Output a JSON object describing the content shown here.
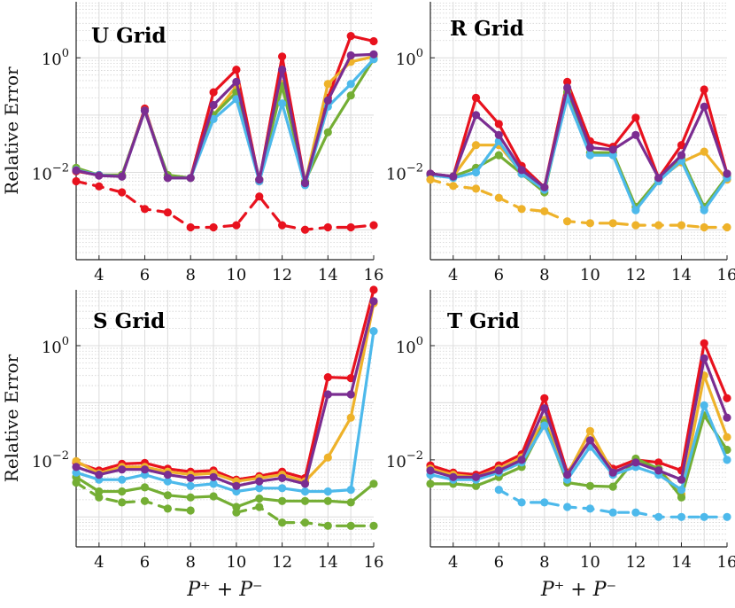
{
  "chart_data": [
    {
      "type": "line",
      "title": "U Grid",
      "xlabel": "",
      "ylabel": "Relative Error",
      "x": [
        3,
        4,
        5,
        6,
        7,
        8,
        9,
        10,
        11,
        12,
        13,
        14,
        15,
        16
      ],
      "xticks": [
        "4",
        "6",
        "8",
        "10",
        "12",
        "14",
        "16"
      ],
      "yticks": [
        {
          "value": 0.01,
          "base": "10",
          "exp": "−2"
        },
        {
          "value": 1,
          "base": "10",
          "exp": "0"
        }
      ],
      "xlim": [
        3,
        16
      ],
      "ylim": [
        0.0003,
        9.5
      ],
      "yscale": "log",
      "series": [
        {
          "name": "red",
          "color": "#e8121e",
          "dashed": false,
          "values": [
            0.0105,
            0.009,
            0.0085,
            0.13,
            0.008,
            0.008,
            0.25,
            0.62,
            0.007,
            1.05,
            0.0065,
            0.2,
            2.4,
            1.95
          ]
        },
        {
          "name": "orange",
          "color": "#eeb22a",
          "dashed": false,
          "values": [
            0.011,
            0.009,
            0.009,
            0.12,
            0.008,
            0.008,
            0.1,
            0.32,
            0.0075,
            0.35,
            0.0065,
            0.35,
            0.85,
            1.05
          ]
        },
        {
          "name": "green",
          "color": "#74ae34",
          "dashed": false,
          "values": [
            0.012,
            0.009,
            0.009,
            0.12,
            0.009,
            0.008,
            0.1,
            0.25,
            0.0075,
            0.32,
            0.007,
            0.05,
            0.22,
            0.95
          ]
        },
        {
          "name": "cyan",
          "color": "#4db9eb",
          "dashed": false,
          "values": [
            0.011,
            0.009,
            0.0085,
            0.12,
            0.008,
            0.008,
            0.085,
            0.19,
            0.007,
            0.16,
            0.006,
            0.14,
            0.35,
            0.95
          ]
        },
        {
          "name": "purple",
          "color": "#7b2d91",
          "dashed": false,
          "values": [
            0.0108,
            0.0088,
            0.0085,
            0.12,
            0.008,
            0.008,
            0.15,
            0.38,
            0.0075,
            0.62,
            0.0065,
            0.18,
            1.1,
            1.15
          ]
        },
        {
          "name": "red-dashed",
          "color": "#e8121e",
          "dashed": true,
          "values": [
            0.007,
            0.0057,
            0.0045,
            0.0023,
            0.002,
            0.0011,
            0.0011,
            0.0012,
            0.0038,
            0.0012,
            0.001,
            0.0011,
            0.0011,
            0.0012
          ]
        }
      ]
    },
    {
      "type": "line",
      "title": "R Grid",
      "xlabel": "",
      "ylabel": "",
      "x": [
        3,
        4,
        5,
        6,
        7,
        8,
        9,
        10,
        11,
        12,
        13,
        14,
        15,
        16
      ],
      "xticks": [
        "4",
        "6",
        "8",
        "10",
        "12",
        "14",
        "16"
      ],
      "yticks": [
        {
          "value": 0.01,
          "base": "10",
          "exp": "−2"
        },
        {
          "value": 1,
          "base": "10",
          "exp": "0"
        }
      ],
      "xlim": [
        3,
        16
      ],
      "ylim": [
        0.0003,
        9.5
      ],
      "yscale": "log",
      "series": [
        {
          "name": "red",
          "color": "#e8121e",
          "dashed": false,
          "values": [
            0.0095,
            0.0085,
            0.2,
            0.07,
            0.013,
            0.0055,
            0.38,
            0.035,
            0.028,
            0.09,
            0.008,
            0.03,
            0.28,
            0.0095
          ]
        },
        {
          "name": "orange",
          "color": "#eeb22a",
          "dashed": false,
          "values": [
            0.009,
            0.0085,
            0.03,
            0.03,
            0.01,
            0.0055,
            0.25,
            0.022,
            0.022,
            0.0025,
            0.0075,
            0.015,
            0.023,
            0.0075
          ]
        },
        {
          "name": "green",
          "color": "#74ae34",
          "dashed": false,
          "values": [
            0.009,
            0.0085,
            0.012,
            0.02,
            0.0095,
            0.0045,
            0.25,
            0.022,
            0.022,
            0.0025,
            0.0075,
            0.018,
            0.0025,
            0.0085
          ]
        },
        {
          "name": "cyan",
          "color": "#4db9eb",
          "dashed": false,
          "values": [
            0.009,
            0.008,
            0.01,
            0.035,
            0.0095,
            0.005,
            0.2,
            0.02,
            0.02,
            0.0022,
            0.007,
            0.016,
            0.0022,
            0.008
          ]
        },
        {
          "name": "purple",
          "color": "#7b2d91",
          "dashed": false,
          "values": [
            0.0095,
            0.0085,
            0.1,
            0.045,
            0.011,
            0.0055,
            0.3,
            0.027,
            0.025,
            0.045,
            0.008,
            0.02,
            0.14,
            0.0095
          ]
        },
        {
          "name": "orange-dashed",
          "color": "#eeb22a",
          "dashed": true,
          "values": [
            0.0075,
            0.0058,
            0.0052,
            0.0036,
            0.0023,
            0.0021,
            0.0014,
            0.0013,
            0.0013,
            0.0012,
            0.0012,
            0.0012,
            0.0011,
            0.0011
          ]
        }
      ]
    },
    {
      "type": "line",
      "title": "S Grid",
      "xlabel": "P⁺ + P⁻",
      "ylabel": "Relative Error",
      "x": [
        3,
        4,
        5,
        6,
        7,
        8,
        9,
        10,
        11,
        12,
        13,
        14,
        15,
        16
      ],
      "xticks": [
        "4",
        "6",
        "8",
        "10",
        "12",
        "14",
        "16"
      ],
      "yticks": [
        {
          "value": 0.01,
          "base": "10",
          "exp": "−2"
        },
        {
          "value": 1,
          "base": "10",
          "exp": "0"
        }
      ],
      "xlim": [
        3,
        16
      ],
      "ylim": [
        0.0003,
        9.5
      ],
      "yscale": "log",
      "series": [
        {
          "name": "red",
          "color": "#e8121e",
          "dashed": false,
          "values": [
            0.009,
            0.0065,
            0.0085,
            0.0088,
            0.007,
            0.0062,
            0.0065,
            0.0045,
            0.0052,
            0.0062,
            0.0048,
            0.28,
            0.27,
            9.5
          ]
        },
        {
          "name": "orange",
          "color": "#eeb22a",
          "dashed": false,
          "values": [
            0.0095,
            0.0058,
            0.0075,
            0.0075,
            0.0062,
            0.0055,
            0.0058,
            0.0042,
            0.0048,
            0.0055,
            0.0042,
            0.011,
            0.055,
            5.5
          ]
        },
        {
          "name": "green",
          "color": "#74ae34",
          "dashed": false,
          "values": [
            0.005,
            0.0028,
            0.0028,
            0.0033,
            0.0024,
            0.0022,
            0.0023,
            0.0015,
            0.0021,
            0.0019,
            0.0019,
            0.0019,
            0.0018,
            0.0038
          ]
        },
        {
          "name": "cyan",
          "color": "#4db9eb",
          "dashed": false,
          "values": [
            0.006,
            0.0045,
            0.0045,
            0.0055,
            0.0042,
            0.0035,
            0.0038,
            0.0028,
            0.0032,
            0.0032,
            0.0028,
            0.0028,
            0.003,
            1.8
          ]
        },
        {
          "name": "purple",
          "color": "#7b2d91",
          "dashed": false,
          "values": [
            0.0075,
            0.0055,
            0.0068,
            0.0068,
            0.0055,
            0.0048,
            0.005,
            0.0035,
            0.0042,
            0.0048,
            0.0038,
            0.14,
            0.14,
            6.0
          ]
        },
        {
          "name": "green-dashed",
          "color": "#74ae34",
          "dashed": true,
          "values": [
            0.004,
            0.0022,
            0.0018,
            0.0019,
            0.0014,
            0.0013,
            null,
            0.0012,
            0.0015,
            0.0008,
            0.0008,
            0.0007,
            0.0007,
            0.0007
          ]
        }
      ]
    },
    {
      "type": "line",
      "title": "T Grid",
      "xlabel": "P⁺ + P⁻",
      "ylabel": "",
      "x": [
        3,
        4,
        5,
        6,
        7,
        8,
        9,
        10,
        11,
        12,
        13,
        14,
        15,
        16
      ],
      "xticks": [
        "4",
        "6",
        "8",
        "10",
        "12",
        "14",
        "16"
      ],
      "yticks": [
        {
          "value": 0.01,
          "base": "10",
          "exp": "−2"
        },
        {
          "value": 1,
          "base": "10",
          "exp": "0"
        }
      ],
      "xlim": [
        3,
        16
      ],
      "ylim": [
        0.0003,
        9.5
      ],
      "yscale": "log",
      "series": [
        {
          "name": "red",
          "color": "#e8121e",
          "dashed": false,
          "values": [
            0.008,
            0.006,
            0.0055,
            0.008,
            0.0125,
            0.12,
            0.006,
            0.022,
            0.007,
            0.01,
            0.009,
            0.0065,
            1.1,
            0.12
          ]
        },
        {
          "name": "orange",
          "color": "#eeb22a",
          "dashed": false,
          "values": [
            0.007,
            0.0055,
            0.005,
            0.007,
            0.011,
            0.05,
            0.0055,
            0.032,
            0.006,
            0.009,
            0.007,
            0.0025,
            0.3,
            0.025
          ]
        },
        {
          "name": "green",
          "color": "#74ae34",
          "dashed": false,
          "values": [
            0.0038,
            0.0038,
            0.0035,
            0.005,
            0.0075,
            0.045,
            0.004,
            0.0035,
            0.0034,
            0.0105,
            0.007,
            0.0022,
            0.06,
            0.015
          ]
        },
        {
          "name": "cyan",
          "color": "#4db9eb",
          "dashed": false,
          "values": [
            0.0055,
            0.0045,
            0.0045,
            0.006,
            0.009,
            0.04,
            0.0045,
            0.017,
            0.0055,
            0.0075,
            0.0055,
            0.003,
            0.09,
            0.01
          ]
        },
        {
          "name": "purple",
          "color": "#7b2d91",
          "dashed": false,
          "values": [
            0.0065,
            0.005,
            0.005,
            0.0065,
            0.01,
            0.08,
            0.0055,
            0.022,
            0.006,
            0.009,
            0.0065,
            0.0045,
            0.6,
            0.055
          ]
        },
        {
          "name": "cyan-dashed",
          "color": "#4db9eb",
          "dashed": true,
          "values": [
            null,
            null,
            null,
            0.003,
            0.0018,
            0.0018,
            0.0015,
            0.0014,
            0.0012,
            0.0012,
            0.001,
            0.001,
            0.001,
            0.001
          ]
        }
      ]
    }
  ]
}
